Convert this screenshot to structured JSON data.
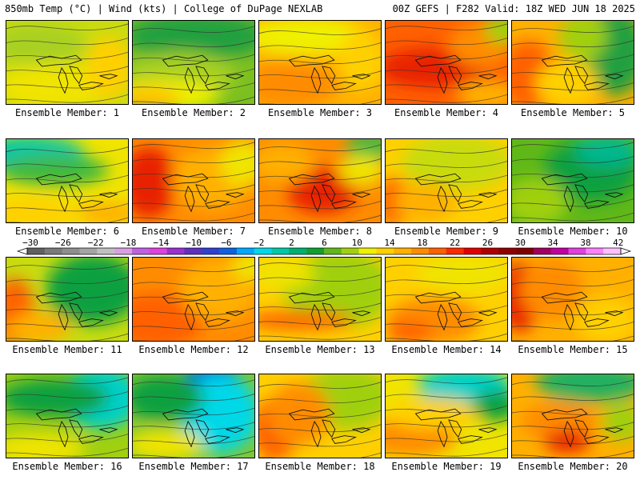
{
  "header": {
    "left_title": "850mb Temp (°C) | Wind (kts) | College of DuPage NEXLAB",
    "right_title": "00Z GEFS | F282 Valid: 18Z WED JUN 18 2025"
  },
  "colorbar": {
    "ticks": [
      "−30",
      "−26",
      "−22",
      "−18",
      "−14",
      "−10",
      "−6",
      "−2",
      "2",
      "6",
      "10",
      "14",
      "18",
      "22",
      "26",
      "30",
      "34",
      "38",
      "42"
    ],
    "colors": [
      "#606060",
      "#7a7a7a",
      "#8e8e8e",
      "#a4a4a4",
      "#c0c0c0",
      "#d8a0e0",
      "#c060e0",
      "#e040e0",
      "#9a30d0",
      "#6030c0",
      "#3040d0",
      "#1060e0",
      "#00a8ff",
      "#00d8e8",
      "#00c8a8",
      "#00b070",
      "#10a030",
      "#60b818",
      "#a0d010",
      "#f0f000",
      "#ffd000",
      "#ffb000",
      "#ff8c00",
      "#ff6000",
      "#ff2800",
      "#e00000",
      "#b00000",
      "#900000",
      "#800000",
      "#a00060",
      "#c000a0",
      "#e040e0",
      "#ff80ff",
      "#ffc0ff"
    ]
  },
  "members": [
    {
      "label": "Ensemble Member: 1",
      "base": "#c8dc10",
      "blobs": [
        [
          "#f0e400",
          60,
          85,
          70,
          30
        ],
        [
          "#a8d020",
          40,
          30,
          60,
          25
        ],
        [
          "#ffd000",
          130,
          60,
          30,
          40
        ]
      ]
    },
    {
      "label": "Ensemble Member: 2",
      "base": "#7cc020",
      "blobs": [
        [
          "#20a040",
          80,
          20,
          90,
          30
        ],
        [
          "#a8d020",
          60,
          70,
          70,
          30
        ],
        [
          "#f0f000",
          40,
          95,
          70,
          20
        ],
        [
          "#ffc000",
          20,
          100,
          40,
          15
        ]
      ]
    },
    {
      "label": "Ensemble Member: 3",
      "base": "#ffb000",
      "blobs": [
        [
          "#f0f000",
          60,
          20,
          80,
          25
        ],
        [
          "#ff8c00",
          40,
          80,
          60,
          30
        ],
        [
          "#ffd000",
          130,
          50,
          30,
          40
        ]
      ]
    },
    {
      "label": "Ensemble Member: 4",
      "base": "#ff6000",
      "blobs": [
        [
          "#e82000",
          60,
          60,
          70,
          25
        ],
        [
          "#ff8c00",
          120,
          30,
          40,
          30
        ],
        [
          "#ffb000",
          130,
          95,
          40,
          20
        ],
        [
          "#a0d010",
          150,
          10,
          25,
          20
        ]
      ]
    },
    {
      "label": "Ensemble Member: 5",
      "base": "#ffb000",
      "blobs": [
        [
          "#20a040",
          130,
          40,
          40,
          55
        ],
        [
          "#a0d010",
          90,
          20,
          30,
          30
        ],
        [
          "#ff6000",
          20,
          70,
          35,
          45
        ],
        [
          "#ffd000",
          70,
          80,
          40,
          30
        ]
      ]
    },
    {
      "label": "Ensemble Member: 6",
      "base": "#f0e400",
      "blobs": [
        [
          "#00c8a8",
          30,
          20,
          70,
          25
        ],
        [
          "#40b840",
          60,
          40,
          70,
          20
        ],
        [
          "#ffd000",
          30,
          95,
          60,
          20
        ],
        [
          "#ffb000",
          130,
          95,
          40,
          15
        ]
      ]
    },
    {
      "label": "Ensemble Member: 7",
      "base": "#ff8c00",
      "blobs": [
        [
          "#e82000",
          20,
          55,
          35,
          45
        ],
        [
          "#ffb000",
          100,
          50,
          50,
          40
        ],
        [
          "#f0e400",
          140,
          30,
          30,
          30
        ]
      ]
    },
    {
      "label": "Ensemble Member: 8",
      "base": "#ff8c00",
      "blobs": [
        [
          "#e82000",
          80,
          65,
          45,
          30
        ],
        [
          "#ffb000",
          30,
          30,
          40,
          25
        ],
        [
          "#40b840",
          140,
          10,
          30,
          20
        ],
        [
          "#f0e400",
          130,
          40,
          30,
          20
        ]
      ]
    },
    {
      "label": "Ensemble Member: 9",
      "base": "#ffd000",
      "blobs": [
        [
          "#c8dc10",
          90,
          30,
          70,
          35
        ],
        [
          "#ff6000",
          10,
          80,
          25,
          30
        ],
        [
          "#ffb000",
          50,
          80,
          40,
          25
        ]
      ]
    },
    {
      "label": "Ensemble Member: 10",
      "base": "#60b818",
      "blobs": [
        [
          "#10a040",
          100,
          40,
          60,
          40
        ],
        [
          "#00b890",
          120,
          15,
          40,
          20
        ],
        [
          "#a0d010",
          30,
          80,
          40,
          30
        ]
      ]
    },
    {
      "label": "Ensemble Member: 11",
      "base": "#c8dc10",
      "blobs": [
        [
          "#10a040",
          110,
          40,
          60,
          45
        ],
        [
          "#ff6000",
          10,
          70,
          25,
          45
        ],
        [
          "#ffb000",
          40,
          90,
          40,
          20
        ]
      ]
    },
    {
      "label": "Ensemble Member: 12",
      "base": "#ff8c00",
      "blobs": [
        [
          "#ff6000",
          30,
          80,
          60,
          35
        ],
        [
          "#ffb000",
          110,
          40,
          50,
          40
        ],
        [
          "#f0e400",
          150,
          10,
          25,
          20
        ]
      ]
    },
    {
      "label": "Ensemble Member: 13",
      "base": "#ffd000",
      "blobs": [
        [
          "#a0d010",
          100,
          40,
          70,
          50
        ],
        [
          "#ff6000",
          50,
          80,
          70,
          12
        ],
        [
          "#f0e400",
          30,
          20,
          40,
          20
        ]
      ]
    },
    {
      "label": "Ensemble Member: 14",
      "base": "#ffd000",
      "blobs": [
        [
          "#ff8c00",
          60,
          80,
          60,
          30
        ],
        [
          "#f0e400",
          100,
          20,
          60,
          25
        ],
        [
          "#ff6000",
          30,
          95,
          30,
          15
        ]
      ]
    },
    {
      "label": "Ensemble Member: 15",
      "base": "#ffb000",
      "blobs": [
        [
          "#e82000",
          10,
          50,
          25,
          45
        ],
        [
          "#ff8c00",
          50,
          40,
          40,
          40
        ],
        [
          "#ffd000",
          120,
          80,
          40,
          30
        ]
      ]
    },
    {
      "label": "Ensemble Member: 16",
      "base": "#a0d010",
      "blobs": [
        [
          "#00d0c8",
          120,
          30,
          50,
          40
        ],
        [
          "#10a040",
          60,
          30,
          70,
          25
        ],
        [
          "#f0e400",
          40,
          95,
          60,
          20
        ]
      ]
    },
    {
      "label": "Ensemble Member: 17",
      "base": "#80c830",
      "blobs": [
        [
          "#0060e0",
          100,
          20,
          40,
          35
        ],
        [
          "#00d8e8",
          110,
          50,
          50,
          50
        ],
        [
          "#10a040",
          40,
          30,
          50,
          30
        ],
        [
          "#f0e400",
          40,
          90,
          50,
          20
        ]
      ]
    },
    {
      "label": "Ensemble Member: 18",
      "base": "#ffd000",
      "blobs": [
        [
          "#ff6000",
          20,
          70,
          30,
          40
        ],
        [
          "#a0d010",
          110,
          30,
          60,
          40
        ],
        [
          "#ff8c00",
          50,
          50,
          40,
          40
        ]
      ]
    },
    {
      "label": "Ensemble Member: 19",
      "base": "#f0e400",
      "blobs": [
        [
          "#00d0c8",
          100,
          15,
          60,
          25
        ],
        [
          "#ff8c00",
          30,
          80,
          60,
          25
        ],
        [
          "#ffd000",
          60,
          50,
          60,
          20
        ],
        [
          "#10a040",
          140,
          40,
          30,
          20
        ]
      ]
    },
    {
      "label": "Ensemble Member: 20",
      "base": "#ffb000",
      "blobs": [
        [
          "#20b060",
          100,
          10,
          70,
          25
        ],
        [
          "#ff8c00",
          60,
          60,
          50,
          25
        ],
        [
          "#e82000",
          70,
          85,
          30,
          15
        ],
        [
          "#a0d010",
          140,
          60,
          25,
          25
        ]
      ]
    }
  ]
}
